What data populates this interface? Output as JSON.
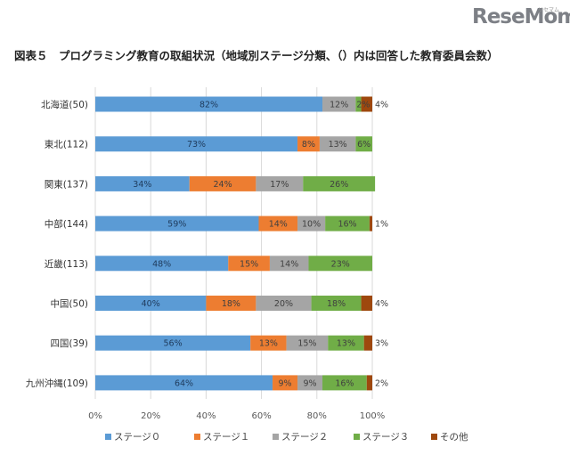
{
  "logo": {
    "text": "ReseMom",
    "sub": "リセマム"
  },
  "title": "図表５　プログラミング教育の取組状況（地域別ステージ分類、（）内は回答した教育委員会数）",
  "chart_data": {
    "type": "bar",
    "orientation": "horizontal",
    "stacked": true,
    "title": "図表５　プログラミング教育の取組状況（地域別ステージ分類、（）内は回答した教育委員会数）",
    "categories": [
      "北海道(50)",
      "東北(112)",
      "関東(137)",
      "中部(144)",
      "近畿(113)",
      "中国(50)",
      "四国(39)",
      "九州沖縄(109)"
    ],
    "series": [
      {
        "name": "ステージ０",
        "color": "#5b9bd5",
        "values": [
          82,
          73,
          34,
          59,
          48,
          40,
          56,
          64
        ],
        "labels": [
          "82%",
          "73%",
          "34%",
          "59%",
          "48%",
          "40%",
          "56%",
          "64%"
        ]
      },
      {
        "name": "ステージ１",
        "color": "#ed7d31",
        "values": [
          0,
          8,
          24,
          14,
          15,
          18,
          13,
          9
        ],
        "labels": [
          "",
          "8%",
          "24%",
          "14%",
          "15%",
          "18%",
          "13%",
          "9%"
        ]
      },
      {
        "name": "ステージ２",
        "color": "#a5a5a5",
        "values": [
          12,
          13,
          17,
          10,
          14,
          20,
          15,
          9
        ],
        "labels": [
          "12%",
          "13%",
          "17%",
          "10%",
          "14%",
          "20%",
          "15%",
          "9%"
        ]
      },
      {
        "name": "ステージ３",
        "color": "#70ad47",
        "values": [
          2,
          6,
          26,
          16,
          23,
          18,
          13,
          16
        ],
        "labels": [
          "2%",
          "6%",
          "26%",
          "16%",
          "23%",
          "18%",
          "13%",
          "16%"
        ]
      },
      {
        "name": "その他",
        "color": "#9e480e",
        "values": [
          4,
          0,
          0,
          1,
          0,
          4,
          3,
          2
        ],
        "labels": [
          "4%",
          "",
          "",
          "1%",
          "",
          "4%",
          "3%",
          "2%"
        ]
      }
    ],
    "xlim": [
      0,
      100
    ],
    "xticks": [
      "0%",
      "20%",
      "40%",
      "60%",
      "80%",
      "100%"
    ],
    "xlabel": "",
    "ylabel": "",
    "legend": "bottom"
  }
}
